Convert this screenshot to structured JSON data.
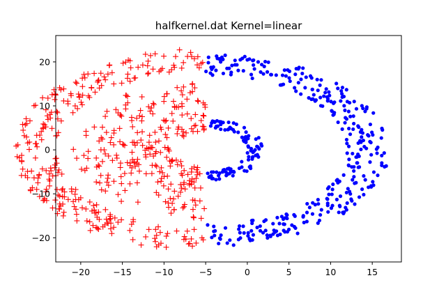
{
  "chart_data": {
    "type": "scatter",
    "title": "halfkernel.dat Kernel=linear",
    "xlabel": "",
    "ylabel": "",
    "xlim": [
      -23,
      18.5
    ],
    "ylim": [
      -25.5,
      26
    ],
    "x_ticks": [
      -20,
      -15,
      -10,
      -5,
      0,
      5,
      10,
      15
    ],
    "y_ticks": [
      -20,
      -10,
      0,
      10,
      20
    ],
    "x_tick_labels": [
      "−20",
      "−15",
      "−10",
      "−5",
      "0",
      "5",
      "10",
      "15"
    ],
    "y_tick_labels": [
      "−20",
      "−10",
      "0",
      "10",
      "20"
    ],
    "grid": false,
    "legend": "none",
    "series": [
      {
        "marker": "plus",
        "color": "#ff0000",
        "shape": "outer half-ring",
        "center": [
          -5,
          0
        ],
        "radius_range": [
          18,
          23
        ],
        "angle_range_deg": [
          90,
          270
        ],
        "count": 280
      },
      {
        "marker": "plus",
        "color": "#ff0000",
        "shape": "inner half-ring",
        "center": [
          -5,
          0
        ],
        "radius_range": [
          4,
          16
        ],
        "angle_range_deg": [
          90,
          270
        ],
        "count": 270
      },
      {
        "marker": "dot",
        "color": "#0000ff",
        "shape": "inner half-ring",
        "center": [
          -5,
          0
        ],
        "radius_range": [
          5,
          7
        ],
        "angle_range_deg": [
          -90,
          90
        ],
        "count": 100
      },
      {
        "marker": "dot",
        "color": "#0000ff",
        "shape": "outer half-ring",
        "center": [
          -5,
          0
        ],
        "radius_range": [
          17,
          22
        ],
        "angle_range_deg": [
          -90,
          90
        ],
        "count": 330
      }
    ]
  }
}
